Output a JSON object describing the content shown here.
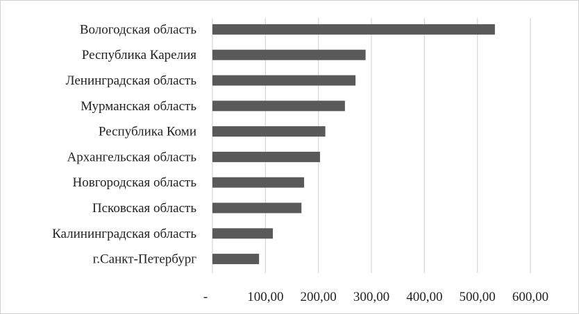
{
  "chart_data": {
    "type": "bar",
    "orientation": "horizontal",
    "title": "",
    "xlabel": "",
    "ylabel": "",
    "categories": [
      "Вологодская область",
      "Республика Карелия",
      "Ленинградская область",
      "Мурманская область",
      "Республика Коми",
      "Архангельская область",
      "Новгородская область",
      "Псковская область",
      "Калининградская область",
      "г.Санкт-Петербург"
    ],
    "values": [
      533,
      289,
      270,
      250,
      213,
      203,
      173,
      168,
      114,
      88
    ],
    "xlim": [
      0,
      600
    ],
    "xticks": [
      0,
      100,
      200,
      300,
      400,
      500,
      600
    ],
    "xtick_labels": [
      "-",
      "100,00",
      "200,00",
      "300,00",
      "400,00",
      "500,00",
      "600,00"
    ],
    "grid": "vertical",
    "legend": "none",
    "bar_color": "#595959",
    "grid_color": "#d9d9d9"
  }
}
